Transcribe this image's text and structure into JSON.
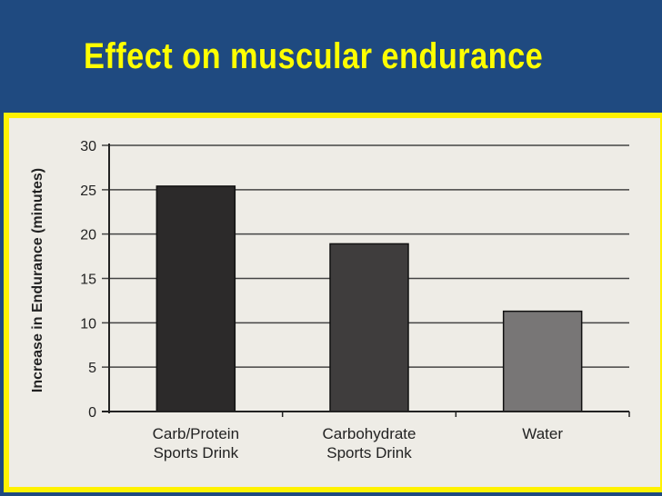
{
  "slide": {
    "title": "Effect on muscular endurance"
  },
  "colors": {
    "background": "#1f4a80",
    "title": "#ffff00",
    "frame_border": "#fff200",
    "plot_background": "#eeece6"
  },
  "chart_data": {
    "type": "bar",
    "title": "",
    "xlabel": "",
    "ylabel": "Increase in Endurance (minutes)",
    "ylim": [
      0,
      30
    ],
    "yticks": [
      0,
      5,
      10,
      15,
      20,
      25,
      30
    ],
    "grid": true,
    "categories": [
      [
        "Carb/Protein",
        "Sports Drink"
      ],
      [
        "Carbohydrate",
        "Sports Drink"
      ],
      [
        "Water"
      ]
    ],
    "values": [
      25.4,
      18.9,
      11.3
    ],
    "bar_colors": [
      "#2c2a2a",
      "#3f3d3d",
      "#787676"
    ]
  }
}
